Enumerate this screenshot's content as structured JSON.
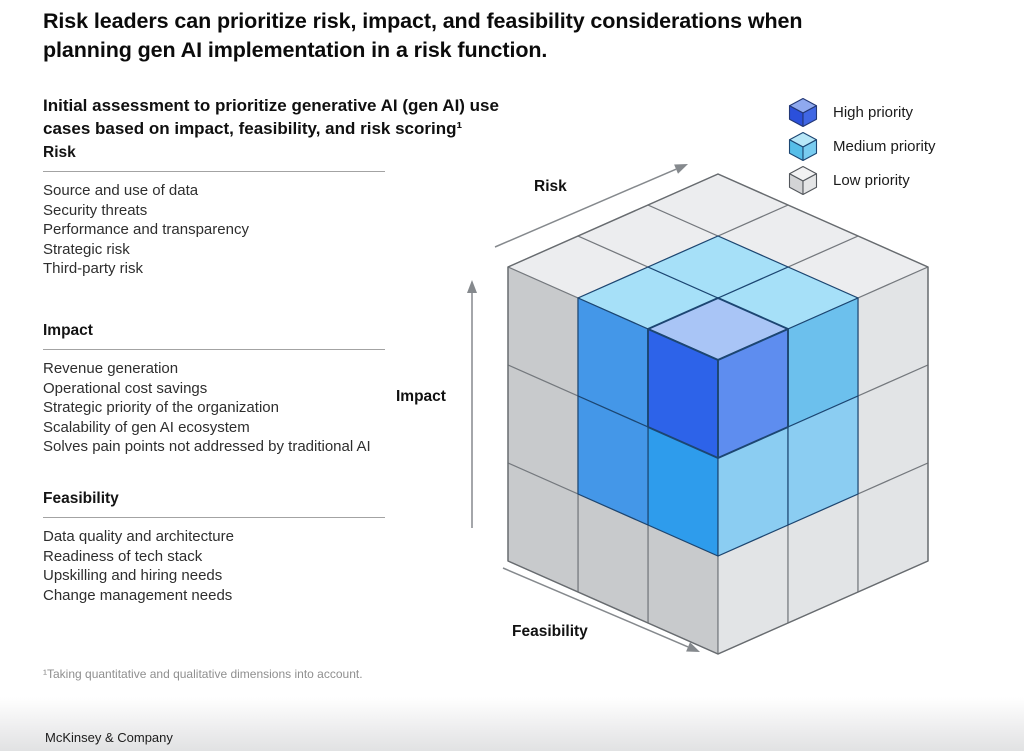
{
  "title": {
    "lines": [
      "Risk leaders can prioritize risk, impact, and feasibility considerations when",
      "planning gen AI implementation in a risk function."
    ]
  },
  "subtitle": {
    "lines": [
      "Initial assessment to prioritize generative AI (gen AI) use",
      "cases based on impact, feasibility, and risk scoring¹"
    ]
  },
  "sections": [
    {
      "header": "Risk",
      "items": [
        "Source and use of data",
        "Security threats",
        "Performance and transparency",
        "Strategic risk",
        "Third-party risk"
      ]
    },
    {
      "header": "Impact",
      "items": [
        "Revenue generation",
        "Operational cost savings",
        "Strategic priority of the organization",
        "Scalability of gen AI ecosystem",
        "Solves pain points not addressed by traditional AI"
      ]
    },
    {
      "header": "Feasibility",
      "items": [
        "Data quality and architecture",
        "Readiness of tech stack",
        "Upskilling and hiring needs",
        "Change management needs"
      ]
    }
  ],
  "legend": {
    "items": [
      {
        "label": "High priority",
        "priority": "high"
      },
      {
        "label": "Medium priority",
        "priority": "medium"
      },
      {
        "label": "Low priority",
        "priority": "low"
      }
    ]
  },
  "legend_cube_colors": {
    "high": {
      "top": "#8FA9EF",
      "left": "#2B50DB",
      "right": "#4067E4",
      "stroke": "#233876"
    },
    "medium": {
      "top": "#B7E7F8",
      "left": "#56BEE9",
      "right": "#79CCF0",
      "stroke": "#1C4672"
    },
    "low": {
      "top": "#F2F2F3",
      "left": "#D3D4D6",
      "right": "#E4E5E6",
      "stroke": "#53575C"
    }
  },
  "cube": {
    "axes": {
      "risk": "Risk",
      "impact": "Impact",
      "feasibility": "Feasibility"
    },
    "faces": {
      "top": [
        [
          "high",
          "med",
          "low"
        ],
        [
          "med",
          "med",
          "low"
        ],
        [
          "low",
          "low",
          "low"
        ]
      ],
      "left": [
        [
          "high",
          "med",
          "low"
        ],
        [
          "med2",
          "med",
          "low"
        ],
        [
          "low",
          "low",
          "low"
        ]
      ],
      "right": [
        [
          "high",
          "med",
          "low"
        ],
        [
          "med2",
          "med2",
          "low"
        ],
        [
          "low",
          "low",
          "low"
        ]
      ]
    },
    "palette": {
      "top": {
        "high": "#A9C5F6",
        "med": "#A6E0F8",
        "med2": "#A6E0F8",
        "low": "#ECEDEF"
      },
      "left": {
        "high": "#2D63E9",
        "med": "#4497E8",
        "med2": "#2E9CEC",
        "low": "#C8CACC"
      },
      "right": {
        "high": "#5E8DEF",
        "med": "#6CC0ED",
        "med2": "#8BCDF2",
        "low": "#E2E4E6"
      },
      "stroke_low": "#75797E",
      "stroke_colored": "#1C4672",
      "outline": "#686C70"
    },
    "arrow_color": "#85898D"
  },
  "footnote": "¹Taking quantitative and qualitative dimensions into account.",
  "footer": "McKinsey & Company"
}
